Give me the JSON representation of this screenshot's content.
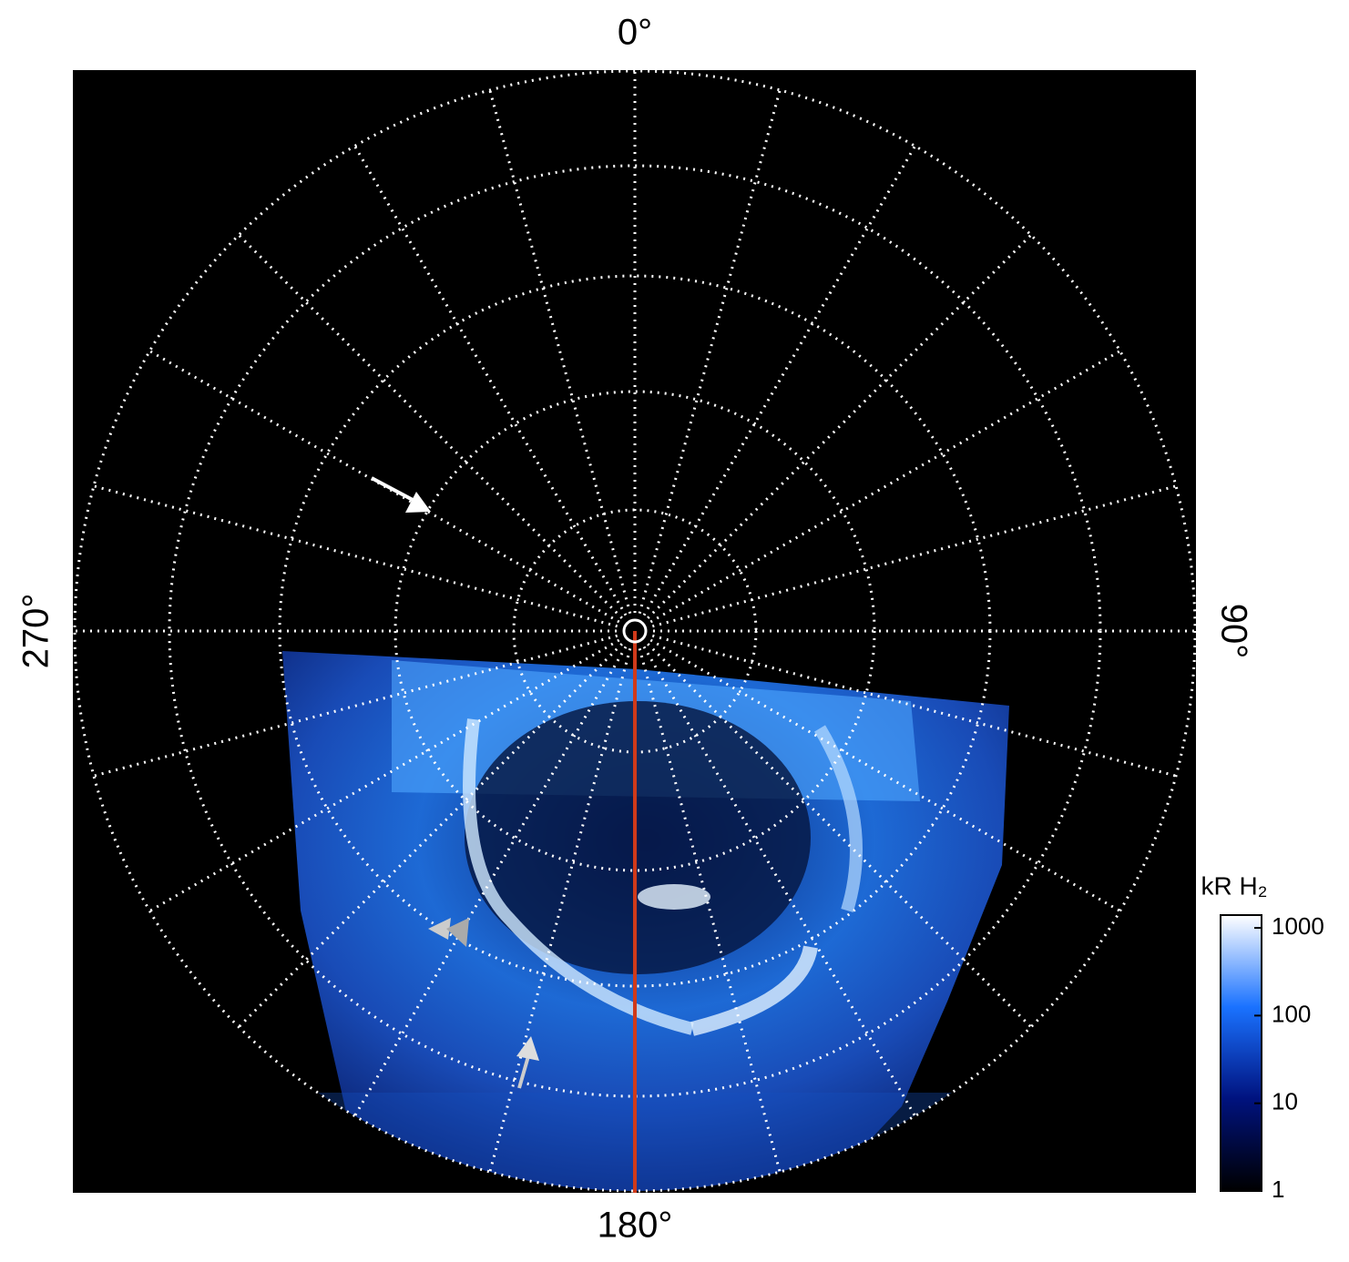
{
  "chart_data": {
    "type": "polar-image",
    "angle_labels": [
      {
        "value": 0,
        "label": "0°"
      },
      {
        "value": 90,
        "label": "90°"
      },
      {
        "value": 180,
        "label": "180°"
      },
      {
        "value": 270,
        "label": "270°"
      }
    ],
    "colorbar": {
      "title": "kR H₂",
      "scale": "log",
      "ylim": [
        1,
        1400
      ],
      "yticks": [
        1,
        10,
        100,
        1000
      ],
      "colors": [
        "#000000",
        "#00127e",
        "#1a72ff",
        "#ffffff"
      ]
    }
  }
}
